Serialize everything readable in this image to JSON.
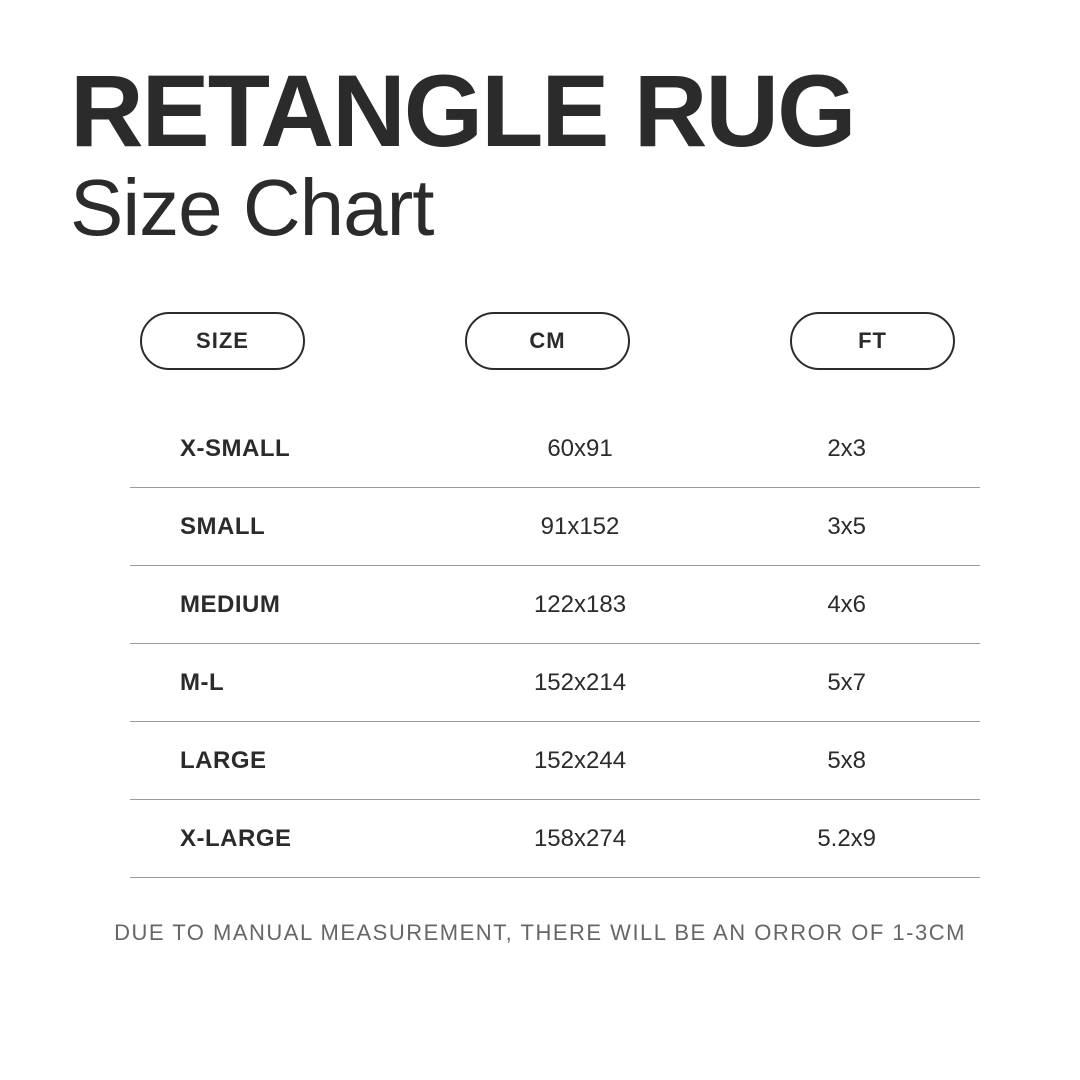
{
  "heading": {
    "title": "RETANGLE RUG",
    "subtitle": "Size Chart",
    "title_color": "#2b2b2b",
    "title_fontsize": 102,
    "title_weight": 800,
    "subtitle_fontsize": 80,
    "subtitle_weight": 400
  },
  "table": {
    "type": "table",
    "columns": [
      {
        "label": "SIZE",
        "align": "left",
        "bold": true
      },
      {
        "label": "CM",
        "align": "center",
        "bold": false
      },
      {
        "label": "FT",
        "align": "center",
        "bold": false
      }
    ],
    "header_style": {
      "shape": "pill",
      "border_color": "#2b2b2b",
      "border_width": 2,
      "font_size": 22,
      "font_weight": 700
    },
    "rows": [
      {
        "size": "X-SMALL",
        "cm": "60x91",
        "ft": "2x3"
      },
      {
        "size": "SMALL",
        "cm": "91x152",
        "ft": "3x5"
      },
      {
        "size": "MEDIUM",
        "cm": "122x183",
        "ft": "4x6"
      },
      {
        "size": "M-L",
        "cm": "152x214",
        "ft": "5x7"
      },
      {
        "size": "LARGE",
        "cm": "152x244",
        "ft": "5x8"
      },
      {
        "size": "X-LARGE",
        "cm": "158x274",
        "ft": "5.2x9"
      }
    ],
    "row_style": {
      "height": 78,
      "border_bottom_color": "#9a9a9a",
      "font_size": 24,
      "size_col_weight": 700
    }
  },
  "footnote": {
    "text": "DUE TO MANUAL MEASUREMENT, THERE WILL BE AN ORROR OF 1-3CM",
    "color": "#666666",
    "font_size": 22,
    "letter_spacing": 1.5
  },
  "colors": {
    "background": "#ffffff",
    "text": "#2b2b2b",
    "divider": "#9a9a9a",
    "muted": "#666666"
  }
}
